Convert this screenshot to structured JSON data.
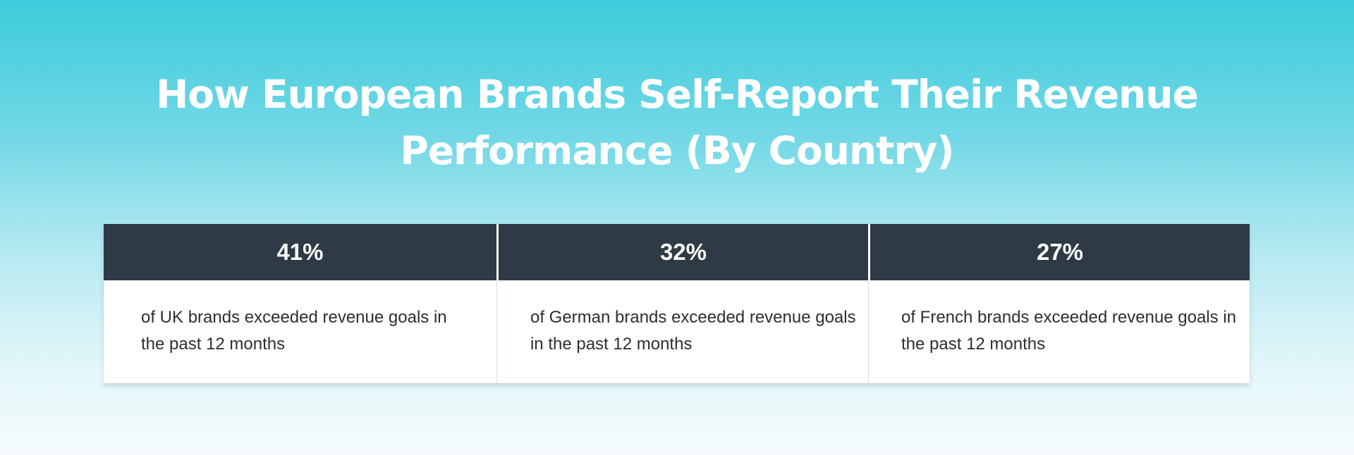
{
  "title": {
    "line1": "How European Brands Self-Report Their Revenue",
    "line2": "Performance (By Country)"
  },
  "stats": [
    {
      "value": "41%",
      "text": "of UK brands exceeded revenue goals in the past 12 months"
    },
    {
      "value": "32%",
      "text": "of German brands exceeded revenue goals in the past 12 months"
    },
    {
      "value": "27%",
      "text": "of French brands exceeded revenue goals in the past 12 months"
    }
  ],
  "colors": {
    "header_bg": "#2e3a45",
    "gradient_top": "#3ccbdb",
    "gradient_bottom": "#f6fcfd"
  }
}
